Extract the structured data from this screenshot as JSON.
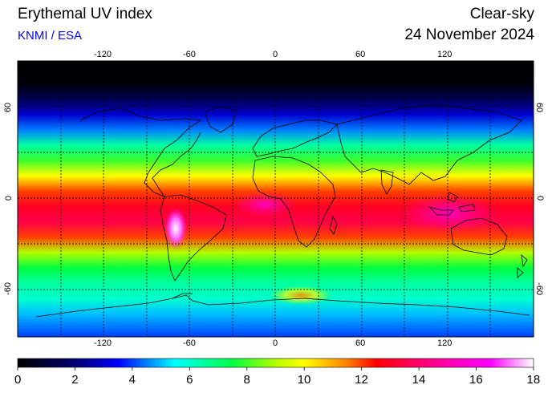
{
  "header": {
    "title": "Erythemal UV index",
    "credit": "KNMI / ESA",
    "mode": "Clear-sky",
    "date": "24 November 2024"
  },
  "axes": {
    "lon_ticks": [
      "-120",
      "-60",
      "0",
      "60",
      "120"
    ],
    "lat_ticks": [
      "60",
      "0",
      "-60"
    ]
  },
  "colorbar": {
    "labels": [
      "0",
      "2",
      "4",
      "6",
      "8",
      "10",
      "12",
      "14",
      "16",
      "18"
    ],
    "stops": [
      {
        "v": 0,
        "c": "#000000"
      },
      {
        "v": 2,
        "c": "#00006e"
      },
      {
        "v": 3.5,
        "c": "#0000ff"
      },
      {
        "v": 5.5,
        "c": "#00ffff"
      },
      {
        "v": 7.5,
        "c": "#00ff40"
      },
      {
        "v": 9,
        "c": "#b4ff00"
      },
      {
        "v": 10,
        "c": "#ffff00"
      },
      {
        "v": 11.5,
        "c": "#ff8000"
      },
      {
        "v": 12.5,
        "c": "#ff0000"
      },
      {
        "v": 14.5,
        "c": "#ff0090"
      },
      {
        "v": 16.5,
        "c": "#ff00ff"
      },
      {
        "v": 18,
        "c": "#ffffff"
      }
    ]
  },
  "map": {
    "lon_range": [
      -180,
      180
    ],
    "lat_range": [
      -90,
      90
    ],
    "lat_bands": [
      {
        "lat": 90,
        "uv": 0
      },
      {
        "lat": 75,
        "uv": 0.2
      },
      {
        "lat": 65,
        "uv": 1.5
      },
      {
        "lat": 55,
        "uv": 3
      },
      {
        "lat": 45,
        "uv": 4.5
      },
      {
        "lat": 35,
        "uv": 6.5
      },
      {
        "lat": 25,
        "uv": 8
      },
      {
        "lat": 15,
        "uv": 10
      },
      {
        "lat": 5,
        "uv": 12
      },
      {
        "lat": -5,
        "uv": 13
      },
      {
        "lat": -15,
        "uv": 13.5
      },
      {
        "lat": -25,
        "uv": 12
      },
      {
        "lat": -35,
        "uv": 9
      },
      {
        "lat": -45,
        "uv": 7.5
      },
      {
        "lat": -55,
        "uv": 6.5
      },
      {
        "lat": -65,
        "uv": 6
      },
      {
        "lat": -75,
        "uv": 5
      },
      {
        "lat": -90,
        "uv": 4
      }
    ]
  }
}
